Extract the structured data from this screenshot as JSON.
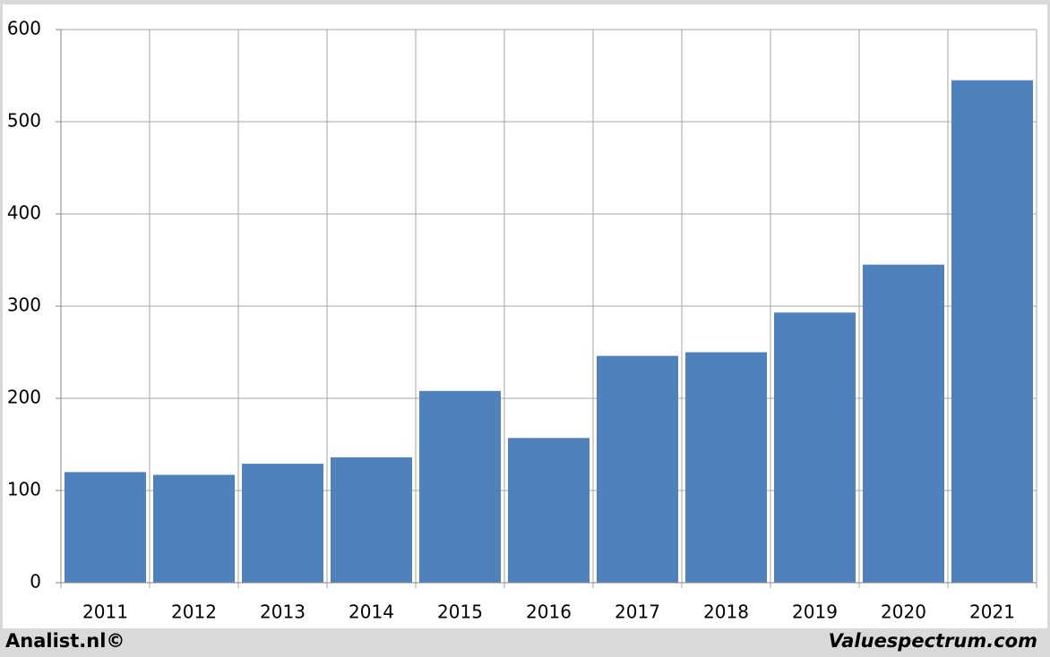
{
  "chart_data": {
    "type": "bar",
    "categories": [
      "2011",
      "2012",
      "2013",
      "2014",
      "2015",
      "2016",
      "2017",
      "2018",
      "2019",
      "2020",
      "2021"
    ],
    "values": [
      120,
      117,
      129,
      136,
      208,
      157,
      246,
      250,
      293,
      345,
      545
    ],
    "color": "#4f81bd",
    "ylim": [
      0,
      600
    ],
    "yticks": [
      0,
      100,
      200,
      300,
      400,
      500,
      600
    ],
    "grid": true
  },
  "footer": {
    "left": "Analist.nl©",
    "right": "Valuespectrum.com"
  }
}
